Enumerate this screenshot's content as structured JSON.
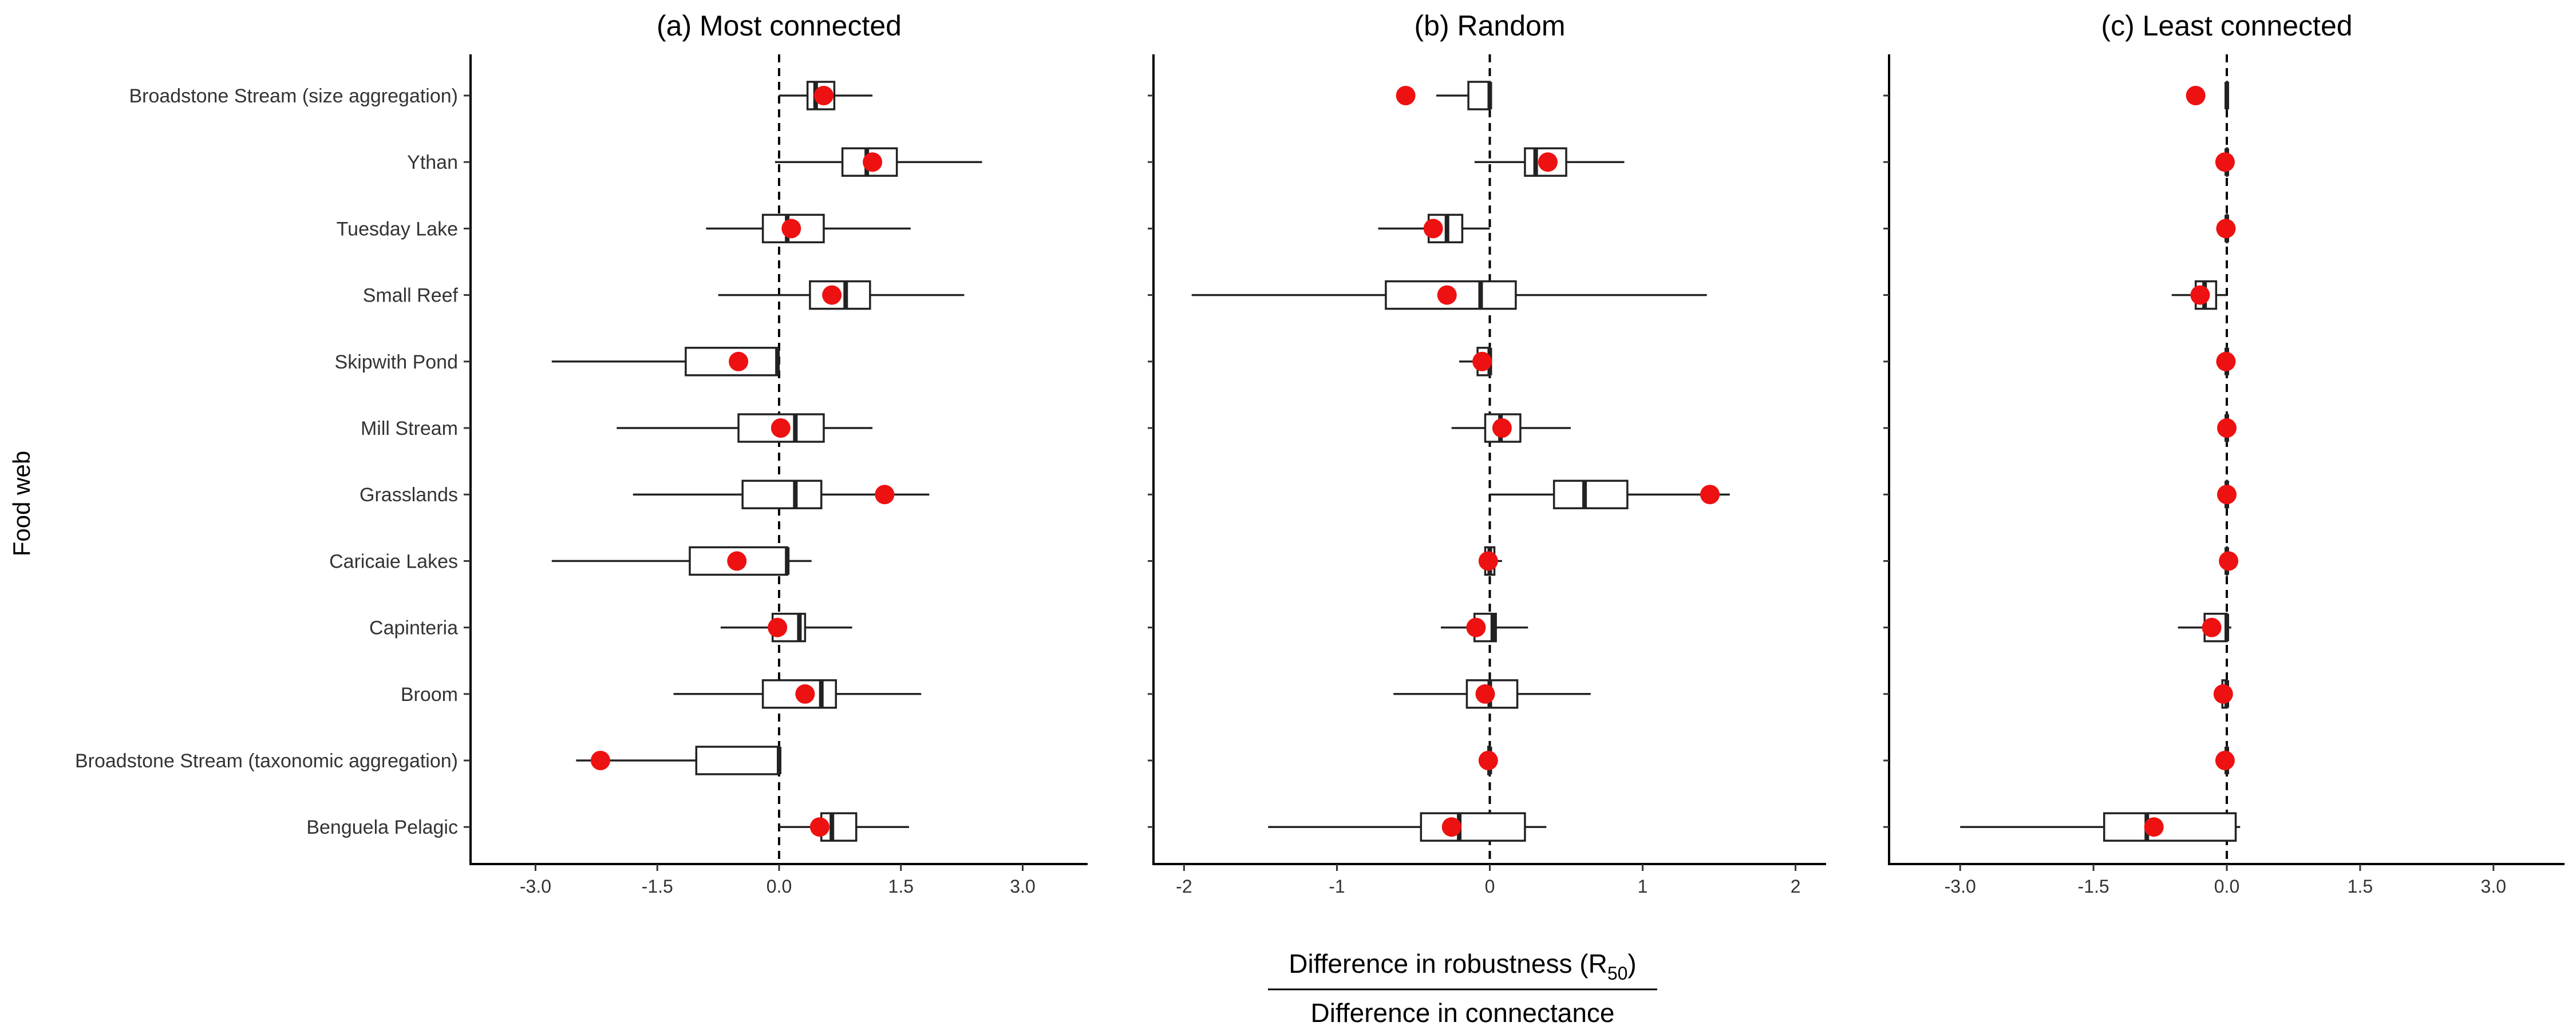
{
  "chart_data": {
    "type": "boxplot",
    "ylabel": "Food web",
    "xlabel": {
      "numerator_main": "Difference in robustness ",
      "numerator_open": "(",
      "numerator_symbol": "R",
      "numerator_sub": "50",
      "numerator_close": ")",
      "denominator": "Difference in connectance"
    },
    "categories": [
      "Broadstone Stream (size aggregation)",
      "Ythan",
      "Tuesday Lake",
      "Small Reef",
      "Skipwith Pond",
      "Mill Stream",
      "Grasslands",
      "Caricaie Lakes",
      "Capinteria",
      "Broom",
      "Broadstone Stream (taxonomic aggregation)",
      "Benguela Pelagic"
    ],
    "panels": [
      {
        "title": "(a) Most connected",
        "xlim": [
          -3.8,
          3.8
        ],
        "ticks": [
          -3.0,
          -1.5,
          0.0,
          1.5,
          3.0
        ],
        "tick_labels": [
          "-3.0",
          "-1.5",
          "0.0",
          "1.5",
          "3.0"
        ],
        "reference_line": 0,
        "boxes": [
          {
            "min": 0.0,
            "q1": 0.35,
            "median": 0.45,
            "q3": 0.68,
            "max": 1.15,
            "observed": 0.55
          },
          {
            "min": -0.05,
            "q1": 0.78,
            "median": 1.08,
            "q3": 1.45,
            "max": 2.5,
            "observed": 1.15
          },
          {
            "min": -0.9,
            "q1": -0.2,
            "median": 0.1,
            "q3": 0.55,
            "max": 1.62,
            "observed": 0.15
          },
          {
            "min": -0.75,
            "q1": 0.38,
            "median": 0.82,
            "q3": 1.12,
            "max": 2.28,
            "observed": 0.65
          },
          {
            "min": -2.8,
            "q1": -1.15,
            "median": -0.02,
            "q3": -0.02,
            "max": -0.02,
            "observed": -0.5
          },
          {
            "min": -2.0,
            "q1": -0.5,
            "median": 0.2,
            "q3": 0.55,
            "max": 1.15,
            "observed": 0.02
          },
          {
            "min": -1.8,
            "q1": -0.45,
            "median": 0.2,
            "q3": 0.52,
            "max": 1.85,
            "observed": 1.3
          },
          {
            "min": -2.8,
            "q1": -1.1,
            "median": 0.1,
            "q3": 0.1,
            "max": 0.4,
            "observed": -0.52
          },
          {
            "min": -0.72,
            "q1": -0.08,
            "median": 0.25,
            "q3": 0.32,
            "max": 0.9,
            "observed": -0.02
          },
          {
            "min": -1.3,
            "q1": -0.2,
            "median": 0.52,
            "q3": 0.7,
            "max": 1.75,
            "observed": 0.32
          },
          {
            "min": -2.5,
            "q1": -1.02,
            "median": 0.0,
            "q3": 0.0,
            "max": 0.0,
            "observed": -2.2
          },
          {
            "min": 0.0,
            "q1": 0.52,
            "median": 0.65,
            "q3": 0.95,
            "max": 1.6,
            "observed": 0.5
          }
        ]
      },
      {
        "title": "(b) Random",
        "xlim": [
          -2.2,
          2.2
        ],
        "ticks": [
          -2,
          -1,
          0,
          1,
          2
        ],
        "tick_labels": [
          "-2",
          "-1",
          "0",
          "1",
          "2"
        ],
        "reference_line": 0,
        "boxes": [
          {
            "min": -0.35,
            "q1": -0.14,
            "median": 0.0,
            "q3": 0.0,
            "max": 0.0,
            "observed": -0.55
          },
          {
            "min": -0.1,
            "q1": 0.23,
            "median": 0.3,
            "q3": 0.5,
            "max": 0.88,
            "observed": 0.38
          },
          {
            "min": -0.73,
            "q1": -0.4,
            "median": -0.28,
            "q3": -0.18,
            "max": 0.0,
            "observed": -0.37
          },
          {
            "min": -1.95,
            "q1": -0.68,
            "median": -0.06,
            "q3": 0.17,
            "max": 1.42,
            "observed": -0.28
          },
          {
            "min": -0.2,
            "q1": -0.08,
            "median": 0.0,
            "q3": 0.0,
            "max": 0.0,
            "observed": -0.05
          },
          {
            "min": -0.25,
            "q1": -0.03,
            "median": 0.07,
            "q3": 0.2,
            "max": 0.53,
            "observed": 0.08
          },
          {
            "min": 0.0,
            "q1": 0.42,
            "median": 0.62,
            "q3": 0.9,
            "max": 1.57,
            "observed": 1.44
          },
          {
            "min": -0.05,
            "q1": -0.03,
            "median": 0.0,
            "q3": 0.03,
            "max": 0.08,
            "observed": -0.01
          },
          {
            "min": -0.32,
            "q1": -0.1,
            "median": 0.02,
            "q3": 0.04,
            "max": 0.25,
            "observed": -0.09
          },
          {
            "min": -0.63,
            "q1": -0.15,
            "median": 0.0,
            "q3": 0.18,
            "max": 0.66,
            "observed": -0.03
          },
          {
            "min": -0.02,
            "q1": -0.01,
            "median": 0.0,
            "q3": 0.0,
            "max": 0.0,
            "observed": -0.01
          },
          {
            "min": -1.45,
            "q1": -0.45,
            "median": -0.2,
            "q3": 0.23,
            "max": 0.37,
            "observed": -0.25
          }
        ]
      },
      {
        "title": "(c) Least connected",
        "xlim": [
          -3.8,
          3.8
        ],
        "ticks": [
          -3.0,
          -1.5,
          0.0,
          1.5,
          3.0
        ],
        "tick_labels": [
          "-3.0",
          "-1.5",
          "0.0",
          "1.5",
          "3.0"
        ],
        "reference_line": 0,
        "boxes": [
          {
            "min": 0.0,
            "q1": 0.0,
            "median": 0.0,
            "q3": 0.0,
            "max": 0.0,
            "observed": -0.35
          },
          {
            "min": 0.0,
            "q1": 0.0,
            "median": 0.0,
            "q3": 0.0,
            "max": 0.0,
            "observed": -0.02
          },
          {
            "min": 0.0,
            "q1": 0.0,
            "median": 0.0,
            "q3": 0.0,
            "max": 0.0,
            "observed": -0.01
          },
          {
            "min": -0.62,
            "q1": -0.35,
            "median": -0.25,
            "q3": -0.12,
            "max": 0.0,
            "observed": -0.3
          },
          {
            "min": 0.0,
            "q1": 0.0,
            "median": 0.0,
            "q3": 0.0,
            "max": 0.0,
            "observed": -0.01
          },
          {
            "min": 0.0,
            "q1": 0.0,
            "median": 0.0,
            "q3": 0.0,
            "max": 0.0,
            "observed": 0.0
          },
          {
            "min": 0.0,
            "q1": 0.0,
            "median": 0.0,
            "q3": 0.0,
            "max": 0.0,
            "observed": 0.0
          },
          {
            "min": 0.0,
            "q1": 0.0,
            "median": 0.0,
            "q3": 0.0,
            "max": 0.0,
            "observed": 0.02
          },
          {
            "min": -0.55,
            "q1": -0.25,
            "median": 0.0,
            "q3": 0.0,
            "max": 0.05,
            "observed": -0.17
          },
          {
            "min": -0.1,
            "q1": -0.05,
            "median": 0.0,
            "q3": 0.0,
            "max": 0.0,
            "observed": -0.04
          },
          {
            "min": 0.0,
            "q1": 0.0,
            "median": 0.0,
            "q3": 0.0,
            "max": 0.0,
            "observed": -0.02
          },
          {
            "min": -3.0,
            "q1": -1.38,
            "median": -0.9,
            "q3": 0.1,
            "max": 0.15,
            "observed": -0.82
          }
        ]
      }
    ],
    "colors": {
      "observed_point": "#ee1111",
      "box_outline": "#222222",
      "axis": "#000000"
    }
  }
}
